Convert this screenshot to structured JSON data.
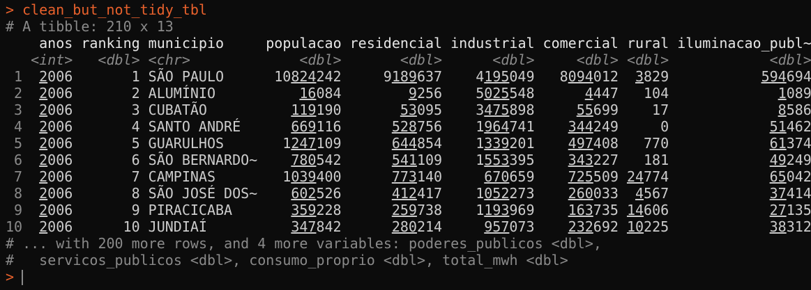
{
  "prompt": ">",
  "command": "clean_but_not_tidy_tbl",
  "table": {
    "summary": "# A tibble: 210 x 13",
    "columns": [
      "anos",
      "ranking",
      "municipio",
      "populacao",
      "residencial",
      "industrial",
      "comercial",
      "rural",
      "iluminacao_publ~"
    ],
    "types": [
      "<int>",
      "<dbl>",
      "<chr>",
      "<dbl>",
      "<dbl>",
      "<dbl>",
      "<dbl>",
      "<dbl>",
      "<dbl>"
    ],
    "row_ids": [
      1,
      2,
      3,
      4,
      5,
      6,
      7,
      8,
      9,
      10
    ],
    "rows": [
      [
        2006,
        1,
        "SÃO PAULO",
        10824242,
        9189637,
        4195049,
        8094012,
        3829,
        594694
      ],
      [
        2006,
        2,
        "ALUMÍNIO",
        16084,
        9256,
        5025548,
        4447,
        104,
        1089
      ],
      [
        2006,
        3,
        "CUBATÃO",
        119190,
        53095,
        3475898,
        55699,
        17,
        8586
      ],
      [
        2006,
        4,
        "SANTO ANDRÉ",
        669116,
        528756,
        1964741,
        344249,
        0,
        51462
      ],
      [
        2006,
        5,
        "GUARULHOS",
        1247109,
        644854,
        1339201,
        497408,
        770,
        61374
      ],
      [
        2006,
        6,
        "SÃO BERNARDO~",
        780542,
        541109,
        1553395,
        343227,
        181,
        49249
      ],
      [
        2006,
        7,
        "CAMPINAS",
        1039400,
        773140,
        670659,
        725509,
        24774,
        65042
      ],
      [
        2006,
        8,
        "SÃO JOSÉ DOS~",
        602526,
        412417,
        1052273,
        260033,
        4567,
        37414
      ],
      [
        2006,
        9,
        "PIRACICABA",
        359228,
        259738,
        1193969,
        163735,
        14606,
        27135
      ],
      [
        2006,
        10,
        "JUNDIAÍ",
        347842,
        280214,
        957073,
        232692,
        10225,
        38312
      ]
    ],
    "footer": [
      "# ... with 200 more rows, and 4 more variables: poderes_publicos <dbl>,",
      "#   servicos_publicos <dbl>, consumo_proprio <dbl>, total_mwh <dbl>"
    ]
  }
}
